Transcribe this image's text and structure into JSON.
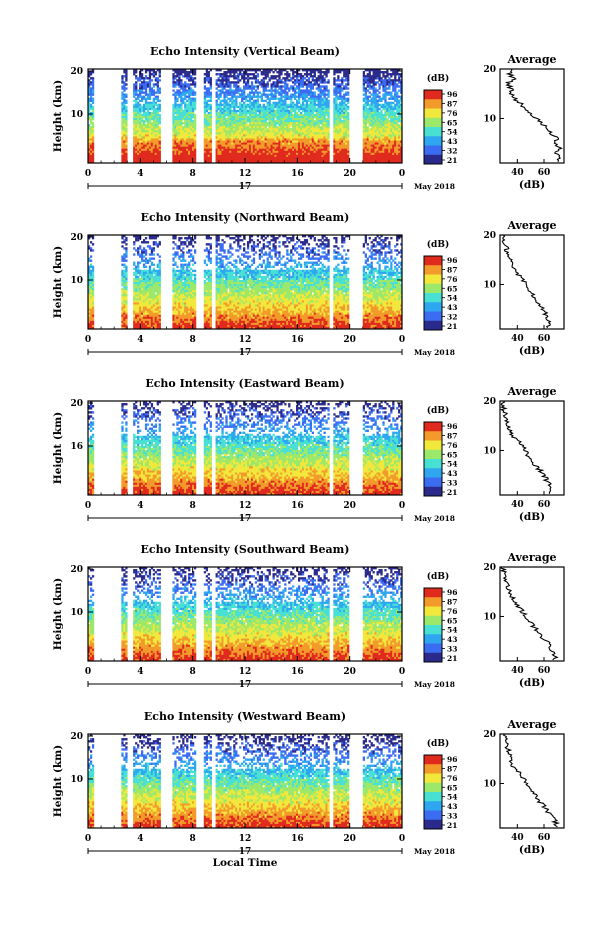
{
  "chart_data": [
    {
      "type": "heatmap",
      "title": "Echo Intensity (Vertical Beam)",
      "xlabel": "",
      "ylabel": "Height (km)",
      "x_ticks": [
        "0",
        "4",
        "8",
        "12",
        "16",
        "20",
        "0"
      ],
      "y_ticks": [
        "20",
        "10"
      ],
      "date_day": "17",
      "date_label": "May 2018",
      "colorbar": {
        "unit": "(dB)",
        "ticks": [
          "96",
          "87",
          "76",
          "65",
          "54",
          "43",
          "32",
          "21"
        ]
      },
      "profile": {
        "title": "Average",
        "xlabel": "(dB)",
        "x_ticks": [
          "40",
          "60"
        ],
        "y_ticks": [
          "20",
          "10"
        ],
        "height_km": [
          2,
          3,
          4,
          5,
          6,
          7,
          8,
          9,
          10,
          11,
          12,
          13,
          14,
          15,
          16,
          17,
          18,
          19,
          20
        ],
        "values": [
          72,
          70,
          72,
          68,
          70,
          65,
          62,
          58,
          55,
          50,
          46,
          43,
          38,
          36,
          35,
          33,
          37,
          34,
          36
        ]
      }
    },
    {
      "type": "heatmap",
      "title": "Echo Intensity (Northward Beam)",
      "xlabel": "",
      "ylabel": "Height (km)",
      "x_ticks": [
        "0",
        "4",
        "8",
        "12",
        "16",
        "20",
        "0"
      ],
      "y_ticks": [
        "20",
        "10"
      ],
      "date_day": "17",
      "date_label": "May 2018",
      "colorbar": {
        "unit": "(dB)",
        "ticks": [
          "96",
          "87",
          "76",
          "65",
          "54",
          "43",
          "32",
          "21"
        ]
      },
      "profile": {
        "title": "Average",
        "xlabel": "(dB)",
        "x_ticks": [
          "40",
          "60"
        ],
        "y_ticks": [
          "20",
          "10"
        ],
        "height_km": [
          2,
          3,
          4,
          5,
          6,
          7,
          8,
          9,
          10,
          11,
          12,
          13,
          14,
          15,
          16,
          17,
          18,
          19,
          20
        ],
        "values": [
          64,
          62,
          61,
          59,
          56,
          53,
          51,
          48,
          46,
          44,
          41,
          38,
          36,
          34,
          33,
          32,
          31,
          30,
          29
        ]
      }
    },
    {
      "type": "heatmap",
      "title": "Echo Intensity (Eastward Beam)",
      "xlabel": "",
      "ylabel": "Height (km)",
      "x_ticks": [
        "0",
        "4",
        "8",
        "12",
        "16",
        "20",
        "0"
      ],
      "y_ticks": [
        "20",
        "16"
      ],
      "date_day": "17",
      "date_label": "May 2018",
      "colorbar": {
        "unit": "(dB)",
        "ticks": [
          "96",
          "87",
          "76",
          "65",
          "54",
          "43",
          "33",
          "21"
        ]
      },
      "profile": {
        "title": "Average",
        "xlabel": "(dB)",
        "x_ticks": [
          "40",
          "60"
        ],
        "y_ticks": [
          "20",
          "10"
        ],
        "height_km": [
          2,
          3,
          4,
          5,
          6,
          7,
          8,
          9,
          10,
          11,
          12,
          13,
          14,
          15,
          16,
          17,
          18,
          19,
          20
        ],
        "values": [
          66,
          64,
          62,
          60,
          57,
          54,
          51,
          48,
          46,
          44,
          40,
          37,
          35,
          33,
          32,
          31,
          30,
          29,
          28
        ]
      }
    },
    {
      "type": "heatmap",
      "title": "Echo Intensity (Southward Beam)",
      "xlabel": "",
      "ylabel": "Height (km)",
      "x_ticks": [
        "0",
        "4",
        "8",
        "12",
        "16",
        "20",
        "0"
      ],
      "y_ticks": [
        "20",
        "10"
      ],
      "date_day": "17",
      "date_label": "May 2018",
      "colorbar": {
        "unit": "(dB)",
        "ticks": [
          "96",
          "87",
          "76",
          "65",
          "54",
          "43",
          "33",
          "21"
        ]
      },
      "profile": {
        "title": "Average",
        "xlabel": "(dB)",
        "x_ticks": [
          "40",
          "60"
        ],
        "y_ticks": [
          "20",
          "10"
        ],
        "height_km": [
          2,
          3,
          4,
          5,
          6,
          7,
          8,
          9,
          10,
          11,
          12,
          13,
          14,
          15,
          16,
          17,
          18,
          19,
          20
        ],
        "values": [
          68,
          66,
          64,
          62,
          58,
          55,
          52,
          49,
          47,
          44,
          41,
          38,
          36,
          34,
          33,
          32,
          31,
          30,
          29
        ]
      }
    },
    {
      "type": "heatmap",
      "title": "Echo Intensity (Westward Beam)",
      "xlabel": "Local Time",
      "ylabel": "Height (km)",
      "x_ticks": [
        "0",
        "4",
        "8",
        "12",
        "16",
        "20",
        "0"
      ],
      "y_ticks": [
        "20",
        "10"
      ],
      "date_day": "17",
      "date_label": "May 2018",
      "colorbar": {
        "unit": "(dB)",
        "ticks": [
          "96",
          "87",
          "76",
          "65",
          "54",
          "43",
          "33",
          "21"
        ]
      },
      "profile": {
        "title": "Average",
        "xlabel": "(dB)",
        "x_ticks": [
          "40",
          "60"
        ],
        "y_ticks": [
          "20",
          "10"
        ],
        "height_km": [
          2,
          3,
          4,
          5,
          6,
          7,
          8,
          9,
          10,
          11,
          12,
          13,
          14,
          15,
          16,
          17,
          18,
          19,
          20
        ],
        "values": [
          69,
          67,
          64,
          61,
          58,
          55,
          52,
          50,
          48,
          45,
          42,
          38,
          36,
          35,
          34,
          33,
          32,
          31,
          30
        ]
      }
    }
  ],
  "colors": {
    "scale": [
      "#2a2a8c",
      "#3b6cf2",
      "#2ea7f0",
      "#49e0d4",
      "#9be86a",
      "#f2e83c",
      "#f29a2a",
      "#e02a1e"
    ]
  }
}
